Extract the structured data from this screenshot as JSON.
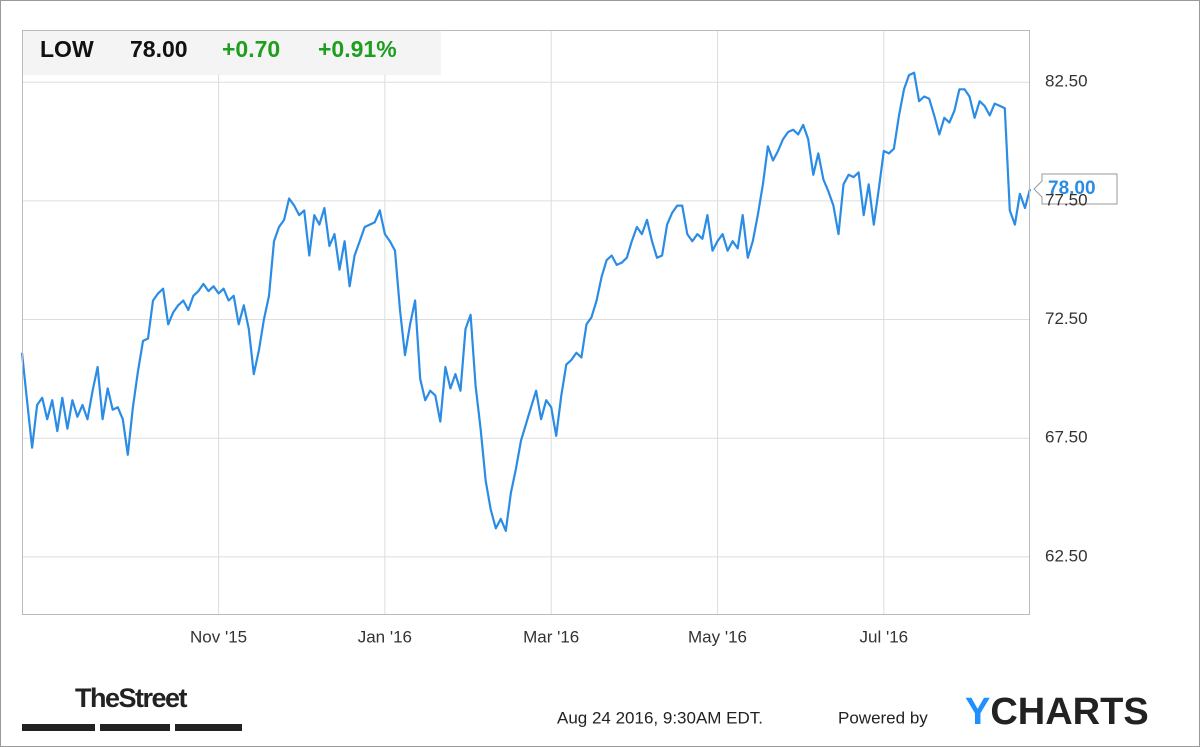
{
  "chart_data": {
    "type": "line",
    "symbol": "LOW",
    "price": "78.00",
    "change": "+0.70",
    "change_pct": "+0.91%",
    "color": "#2b8ce6",
    "change_color": "#1e9e1e",
    "values": [
      71.1,
      69.1,
      67.1,
      68.9,
      69.2,
      68.3,
      69.1,
      67.8,
      69.2,
      67.9,
      69.1,
      68.4,
      68.9,
      68.3,
      69.5,
      70.5,
      68.3,
      69.6,
      68.7,
      68.8,
      68.3,
      66.8,
      68.8,
      70.3,
      71.6,
      71.7,
      73.3,
      73.6,
      73.8,
      72.3,
      72.8,
      73.1,
      73.3,
      72.9,
      73.5,
      73.7,
      74.0,
      73.7,
      73.9,
      73.6,
      73.8,
      73.3,
      73.5,
      72.3,
      73.1,
      72.1,
      70.2,
      71.2,
      72.5,
      73.5,
      75.8,
      76.4,
      76.7,
      77.6,
      77.3,
      76.9,
      77.1,
      75.2,
      76.9,
      76.5,
      77.2,
      75.6,
      76.1,
      74.6,
      75.8,
      73.9,
      75.2,
      75.8,
      76.4,
      76.5,
      76.6,
      77.1,
      76.1,
      75.8,
      75.4,
      72.9,
      71.0,
      72.3,
      73.3,
      70.0,
      69.1,
      69.5,
      69.3,
      68.2,
      70.5,
      69.6,
      70.2,
      69.5,
      72.1,
      72.7,
      69.7,
      67.9,
      65.7,
      64.5,
      63.7,
      64.1,
      63.6,
      65.2,
      66.2,
      67.4,
      68.1,
      68.8,
      69.5,
      68.3,
      69.1,
      68.8,
      67.6,
      69.3,
      70.6,
      70.8,
      71.1,
      70.9,
      72.3,
      72.6,
      73.3,
      74.3,
      75.0,
      75.2,
      74.8,
      74.9,
      75.1,
      75.8,
      76.4,
      76.1,
      76.7,
      75.8,
      75.1,
      75.2,
      76.5,
      77.0,
      77.3,
      77.3,
      76.1,
      75.8,
      76.1,
      75.9,
      76.9,
      75.4,
      75.8,
      76.1,
      75.4,
      75.8,
      75.5,
      76.9,
      75.1,
      75.8,
      76.9,
      78.2,
      79.8,
      79.2,
      79.6,
      80.1,
      80.4,
      80.5,
      80.3,
      80.7,
      80.1,
      78.6,
      79.5,
      78.4,
      77.9,
      77.3,
      76.1,
      78.2,
      78.6,
      78.5,
      78.7,
      76.9,
      78.2,
      76.5,
      78.0,
      79.6,
      79.5,
      79.7,
      81.1,
      82.2,
      82.8,
      82.9,
      81.7,
      81.9,
      81.8,
      81.1,
      80.3,
      81.0,
      80.8,
      81.3,
      82.2,
      82.2,
      81.9,
      81.0,
      81.7,
      81.5,
      81.1,
      81.6,
      81.5,
      81.4,
      77.1,
      76.5,
      77.8,
      77.2,
      78.0
    ],
    "xlim": [
      0,
      200
    ],
    "xticks": [
      {
        "value": 39,
        "label": "Nov '15"
      },
      {
        "value": 72,
        "label": "Jan '16"
      },
      {
        "value": 105,
        "label": "Mar '16"
      },
      {
        "value": 138,
        "label": "May '16"
      },
      {
        "value": 171,
        "label": "Jul '16"
      }
    ],
    "ylim": [
      60.05,
      84.7
    ],
    "yticks": [
      {
        "value": 62.5,
        "label": "62.50"
      },
      {
        "value": 67.5,
        "label": "67.50"
      },
      {
        "value": 72.5,
        "label": "72.50"
      },
      {
        "value": 77.5,
        "label": "77.50"
      },
      {
        "value": 82.5,
        "label": "82.50"
      }
    ],
    "grid": true
  },
  "footer": {
    "source": "TheStreet",
    "timestamp": "Aug 24 2016, 9:30AM EDT.",
    "powered_by": "Powered by",
    "brand": [
      "Y",
      "CHARTS"
    ]
  }
}
